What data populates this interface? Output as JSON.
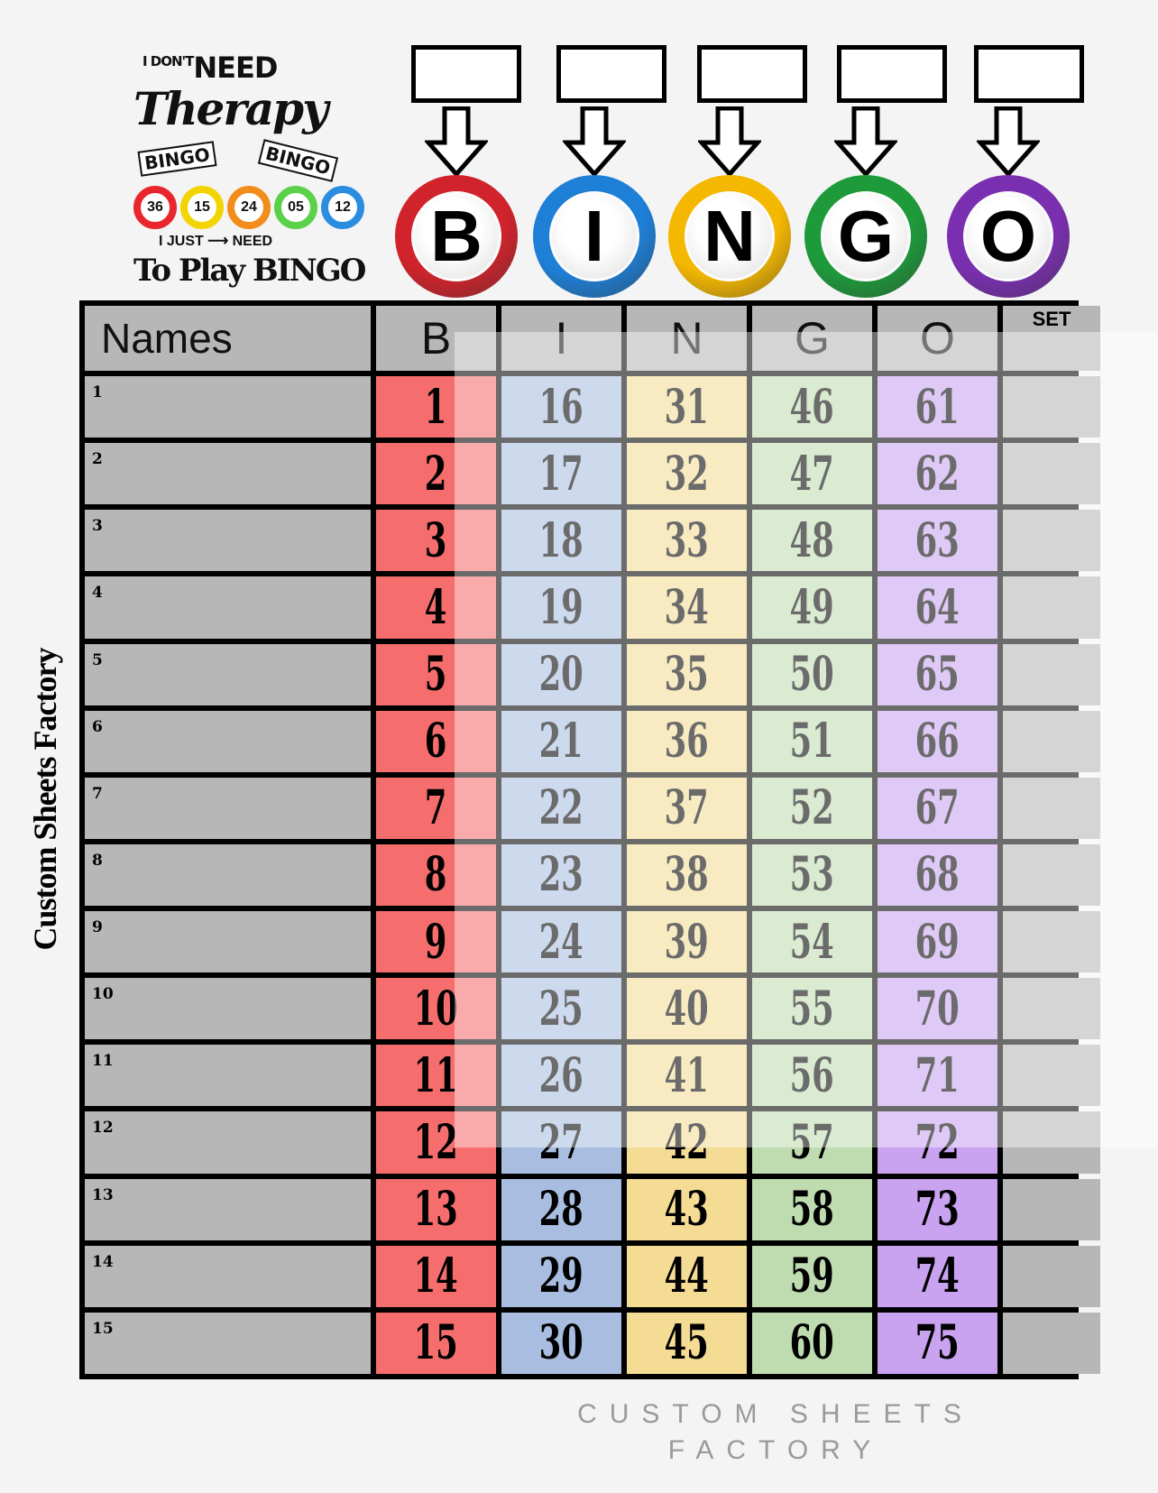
{
  "logo": {
    "line1_small": "I DON'T",
    "line1": "NEED",
    "line2": "Therapy",
    "card1": "BINGO",
    "card2": "BINGO",
    "balls": [
      "36",
      "15",
      "24",
      "05",
      "12"
    ],
    "line3": "I JUST ⟶ NEED",
    "line4": "To Play BINGO"
  },
  "header_balls": [
    {
      "letter": "B",
      "color": "#d0232b"
    },
    {
      "letter": "I",
      "color": "#1e7fd6"
    },
    {
      "letter": "N",
      "color": "#f5b800"
    },
    {
      "letter": "G",
      "color": "#1e9a3a"
    },
    {
      "letter": "O",
      "color": "#7a2fb0"
    }
  ],
  "table": {
    "headers": [
      "Names",
      "B",
      "I",
      "N",
      "G",
      "O",
      "SET"
    ],
    "column_colors": [
      "#b7b7b7",
      "#f56d6d",
      "#a9bde0",
      "#f5dc94",
      "#bfdcb0",
      "#c9a2f0",
      "#b7b7b7"
    ],
    "rows": [
      {
        "label": "1",
        "nums": [
          "1",
          "16",
          "31",
          "46",
          "61"
        ]
      },
      {
        "label": "2",
        "nums": [
          "2",
          "17",
          "32",
          "47",
          "62"
        ]
      },
      {
        "label": "3",
        "nums": [
          "3",
          "18",
          "33",
          "48",
          "63"
        ]
      },
      {
        "label": "4",
        "nums": [
          "4",
          "19",
          "34",
          "49",
          "64"
        ]
      },
      {
        "label": "5",
        "nums": [
          "5",
          "20",
          "35",
          "50",
          "65"
        ]
      },
      {
        "label": "6",
        "nums": [
          "6",
          "21",
          "36",
          "51",
          "66"
        ]
      },
      {
        "label": "7",
        "nums": [
          "7",
          "22",
          "37",
          "52",
          "67"
        ]
      },
      {
        "label": "8",
        "nums": [
          "8",
          "23",
          "38",
          "53",
          "68"
        ]
      },
      {
        "label": "9",
        "nums": [
          "9",
          "24",
          "39",
          "54",
          "69"
        ]
      },
      {
        "label": "10",
        "nums": [
          "10",
          "25",
          "40",
          "55",
          "70"
        ]
      },
      {
        "label": "11",
        "nums": [
          "11",
          "26",
          "41",
          "56",
          "71"
        ]
      },
      {
        "label": "12",
        "nums": [
          "12",
          "27",
          "42",
          "57",
          "72"
        ]
      },
      {
        "label": "13",
        "nums": [
          "13",
          "28",
          "43",
          "58",
          "73"
        ]
      },
      {
        "label": "14",
        "nums": [
          "14",
          "29",
          "44",
          "59",
          "74"
        ]
      },
      {
        "label": "15",
        "nums": [
          "15",
          "30",
          "45",
          "60",
          "75"
        ]
      }
    ]
  },
  "side_text": "Custom Sheets Factory",
  "watermark": {
    "line1": "CUSTOM SHEETS",
    "line2": "FACTORY"
  }
}
